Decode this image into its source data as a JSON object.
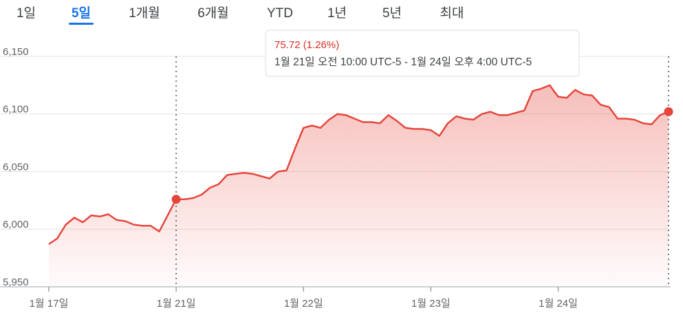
{
  "tabs": {
    "items": [
      "1일",
      "5일",
      "1개월",
      "6개월",
      "YTD",
      "1년",
      "5년",
      "최대"
    ],
    "selected": 1
  },
  "tooltip": {
    "change": "75.72 (1.26%)",
    "range": "1월 21일 오전 10:00 UTC-5 - 1월 24일 오후 4:00 UTC-5"
  },
  "chart_data": {
    "type": "area",
    "color": "#e5463b",
    "x": [
      0,
      1,
      2,
      3,
      4,
      5,
      6,
      7,
      8,
      9,
      10,
      11,
      12,
      13,
      14,
      15,
      16,
      17,
      18,
      19,
      20,
      21,
      22,
      23,
      24,
      25,
      26,
      27,
      28,
      29,
      30,
      31,
      32,
      33,
      34,
      35,
      36,
      37,
      38,
      39,
      40,
      41,
      42,
      43,
      44,
      45,
      46,
      47,
      48,
      49,
      50,
      51,
      52,
      53,
      54,
      55,
      56,
      57,
      58,
      59,
      60,
      61,
      62,
      63,
      64,
      65,
      66,
      67,
      68,
      69,
      70,
      71,
      72,
      73
    ],
    "values": [
      5987,
      5992,
      6004,
      6010,
      6006,
      6012,
      6011,
      6013,
      6008,
      6007,
      6004,
      6003,
      6003,
      5998,
      6012,
      6026,
      6026,
      6027,
      6030,
      6036,
      6039,
      6047,
      6048,
      6049,
      6048,
      6046,
      6044,
      6050,
      6051,
      6070,
      6088,
      6090,
      6088,
      6095,
      6100,
      6099,
      6096,
      6093,
      6093,
      6092,
      6099,
      6094,
      6088,
      6087,
      6087,
      6086,
      6081,
      6092,
      6098,
      6096,
      6095,
      6100,
      6102,
      6099,
      6099,
      6101,
      6103,
      6120,
      6122,
      6125,
      6115,
      6114,
      6121,
      6117,
      6116,
      6108,
      6106,
      6096,
      6096,
      6095,
      6092,
      6091,
      6099,
      6102
    ],
    "xlim": [
      0,
      73
    ],
    "xticks": [
      {
        "value": 0,
        "label": "1월 17일"
      },
      {
        "value": 15,
        "label": "1월 21일"
      },
      {
        "value": 30,
        "label": "1월 22일"
      },
      {
        "value": 45,
        "label": "1월 23일"
      },
      {
        "value": 60,
        "label": "1월 24일"
      }
    ],
    "ylim": [
      5950,
      6150
    ],
    "yticks": [
      {
        "value": 5950,
        "label": "5,950"
      },
      {
        "value": 6000,
        "label": "6,000"
      },
      {
        "value": 6050,
        "label": "6,050"
      },
      {
        "value": 6100,
        "label": "6,100"
      },
      {
        "value": 6150,
        "label": "6,150"
      }
    ],
    "highlight": [
      15,
      73
    ],
    "grid": true
  }
}
